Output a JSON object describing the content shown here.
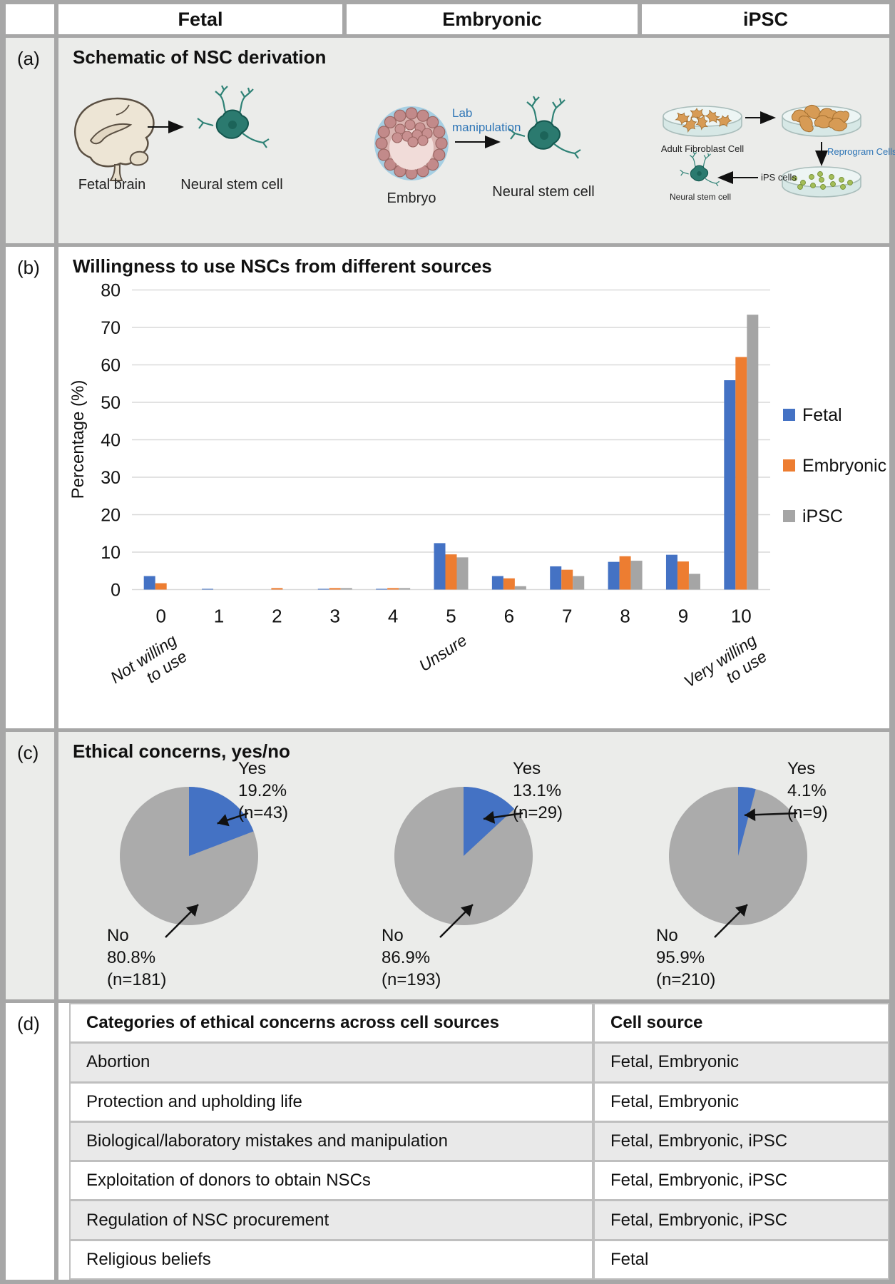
{
  "header": {
    "columns": [
      "Fetal",
      "Embryonic",
      "iPSC"
    ]
  },
  "colors": {
    "fetal_blue": "#4472C4",
    "embryonic_orange": "#ED7D31",
    "ipsc_gray": "#A5A5A5",
    "pie_yes_blue": "#4472C4",
    "pie_no_gray": "#ABABAB",
    "schematic_text_blue": "#2E75B6",
    "gridline_gray": "#D9D9D9",
    "panel_gray": "#EBECEA"
  },
  "panels": {
    "a": {
      "label": "(a)",
      "title": "Schematic of NSC derivation",
      "fetal": {
        "source": "Fetal brain",
        "result": "Neural stem cell"
      },
      "embryonic": {
        "source": "Embryo",
        "process": "Lab manipulation",
        "result": "Neural stem cell"
      },
      "ipsc": {
        "dish1": "Adult Fibroblast Cell",
        "process": "Reprogram Cells",
        "intermediate": "iPS cells",
        "result": "Neural stem cell"
      }
    },
    "b": {
      "label": "(b)",
      "title": "Willingness to use NSCs from different sources"
    },
    "c": {
      "label": "(c)",
      "title": "Ethical concerns, yes/no"
    },
    "d": {
      "label": "(d)"
    }
  },
  "chart_data": [
    {
      "type": "bar",
      "title": "Willingness to use NSCs from different sources",
      "categories": [
        "0",
        "1",
        "2",
        "3",
        "4",
        "5",
        "6",
        "7",
        "8",
        "9",
        "10"
      ],
      "series": [
        {
          "name": "Fetal",
          "color": "#4472C4",
          "values": [
            3.6,
            0.2,
            0,
            0.2,
            0.2,
            12.4,
            3.6,
            6.2,
            7.4,
            9.3,
            55.9
          ]
        },
        {
          "name": "Embryonic",
          "color": "#ED7D31",
          "values": [
            1.7,
            0,
            0.4,
            0.4,
            0.4,
            9.4,
            3.0,
            5.3,
            8.9,
            7.5,
            62.1
          ]
        },
        {
          "name": "iPSC",
          "color": "#A5A5A5",
          "values": [
            0,
            0,
            0,
            0.4,
            0.4,
            8.6,
            0.9,
            3.6,
            7.7,
            4.2,
            73.4
          ]
        }
      ],
      "xlabel": "",
      "ylabel": "Percentage (%)",
      "ylim": [
        0,
        80
      ],
      "ytick_step": 10,
      "grid": true,
      "legend_position": "right",
      "x_annotations": [
        {
          "at": 0,
          "text": "Not willing\nto use"
        },
        {
          "at": 5,
          "text": "Unsure"
        },
        {
          "at": 10,
          "text": "Very willing\nto use"
        }
      ]
    },
    {
      "type": "pie",
      "group": "Fetal",
      "slices": [
        {
          "label": "Yes",
          "pct": 19.2,
          "n": 43,
          "color": "#4472C4"
        },
        {
          "label": "No",
          "pct": 80.8,
          "n": 181,
          "color": "#ABABAB"
        }
      ]
    },
    {
      "type": "pie",
      "group": "Embryonic",
      "slices": [
        {
          "label": "Yes",
          "pct": 13.1,
          "n": 29,
          "color": "#4472C4"
        },
        {
          "label": "No",
          "pct": 86.9,
          "n": 193,
          "color": "#ABABAB"
        }
      ]
    },
    {
      "type": "pie",
      "group": "iPSC",
      "slices": [
        {
          "label": "Yes",
          "pct": 4.1,
          "n": 9,
          "color": "#4472C4"
        },
        {
          "label": "No",
          "pct": 95.9,
          "n": 210,
          "color": "#ABABAB"
        }
      ]
    },
    {
      "type": "table",
      "headers": [
        "Categories of ethical concerns across cell sources",
        "Cell source"
      ],
      "rows": [
        [
          "Abortion",
          "Fetal, Embryonic"
        ],
        [
          "Protection and upholding life",
          "Fetal, Embryonic"
        ],
        [
          "Biological/laboratory mistakes and manipulation",
          "Fetal, Embryonic, iPSC"
        ],
        [
          "Exploitation of donors to obtain NSCs",
          "Fetal, Embryonic, iPSC"
        ],
        [
          "Regulation of NSC procurement",
          "Fetal, Embryonic, iPSC"
        ],
        [
          "Religious beliefs",
          "Fetal"
        ]
      ]
    }
  ]
}
